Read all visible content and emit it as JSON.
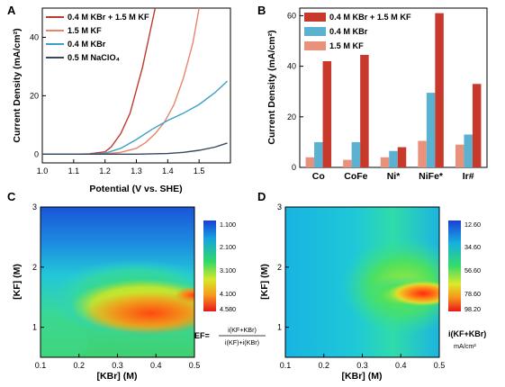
{
  "panels": {
    "A": "A",
    "B": "B",
    "C": "C",
    "D": "D"
  },
  "chart_data": [
    {
      "panel": "A",
      "type": "line",
      "xlabel": "Potential (V vs. SHE)",
      "ylabel": "Current Density (mA/cm²)",
      "xlim": [
        1.0,
        1.6
      ],
      "ylim": [
        -3,
        50
      ],
      "xticks": [
        "1.0",
        "1.1",
        "1.2",
        "1.3",
        "1.4",
        "1.5"
      ],
      "yticks": [
        "0",
        "20",
        "40"
      ],
      "legend_position": "top-left",
      "series": [
        {
          "name": "0.4 M KBr + 1.5 M KF",
          "color": "#c0392b",
          "x": [
            1.0,
            1.1,
            1.15,
            1.2,
            1.22,
            1.25,
            1.28,
            1.3,
            1.32,
            1.34,
            1.36
          ],
          "y": [
            0,
            0,
            0.1,
            0.8,
            2.5,
            7,
            14,
            22,
            30,
            40,
            50
          ]
        },
        {
          "name": "1.5 M KF",
          "color": "#e8856a",
          "x": [
            1.0,
            1.15,
            1.2,
            1.25,
            1.3,
            1.33,
            1.36,
            1.39,
            1.42,
            1.45,
            1.48,
            1.5
          ],
          "y": [
            0,
            0,
            0.1,
            0.6,
            2,
            4,
            7,
            11,
            17,
            26,
            38,
            50
          ]
        },
        {
          "name": "0.4 M KBr",
          "color": "#3aa0c4",
          "x": [
            1.0,
            1.15,
            1.2,
            1.25,
            1.3,
            1.35,
            1.4,
            1.45,
            1.5,
            1.55,
            1.59
          ],
          "y": [
            0,
            0,
            0.3,
            2,
            5,
            8.5,
            11.5,
            14,
            17,
            21,
            25
          ]
        },
        {
          "name": "0.5 M NaClO₄",
          "color": "#34495e",
          "x": [
            1.0,
            1.3,
            1.4,
            1.45,
            1.5,
            1.55,
            1.59
          ],
          "y": [
            0,
            0,
            0.2,
            0.6,
            1.3,
            2.4,
            3.8
          ]
        }
      ]
    },
    {
      "panel": "B",
      "type": "bar",
      "ylabel": "Current Density (mA/cm²)",
      "categories": [
        "Co",
        "CoFe",
        "Ni*",
        "NiFe*",
        "Ir#"
      ],
      "ylim": [
        0,
        63
      ],
      "yticks": [
        "0",
        "20",
        "40",
        "60"
      ],
      "legend_position": "top-left",
      "series": [
        {
          "name": "1.5 M KF",
          "color": "#e8927c",
          "values": [
            4,
            3,
            4,
            10.5,
            9
          ]
        },
        {
          "name": "0.4 M KBr",
          "color": "#5bb1d0",
          "values": [
            10,
            10,
            6.5,
            29.5,
            13
          ]
        },
        {
          "name": "0.4 M KBr + 1.5 M KF",
          "color": "#c9392b",
          "values": [
            42,
            44.5,
            8,
            61,
            33
          ]
        }
      ]
    },
    {
      "panel": "C",
      "type": "heatmap",
      "xlabel": "[KBr] (M)",
      "ylabel": "[KF] (M)",
      "xlim": [
        0.1,
        0.5
      ],
      "ylim": [
        0.5,
        3
      ],
      "xticks": [
        "0.1",
        "0.2",
        "0.3",
        "0.4",
        "0.5"
      ],
      "yticks": [
        "1",
        "2",
        "3"
      ],
      "colorbar_labels": [
        "1.100",
        "2.100",
        "3.100",
        "4.100",
        "4.580"
      ],
      "colorbar_title": "EF=",
      "colorbar_numerator": "i(KF+KBr)",
      "colorbar_denominator": "i(KF)+i(KBr)"
    },
    {
      "panel": "D",
      "type": "heatmap",
      "xlabel": "[KBr] (M)",
      "ylabel": "[KF] (M)",
      "xlim": [
        0.1,
        0.5
      ],
      "ylim": [
        0.5,
        3
      ],
      "xticks": [
        "0.1",
        "0.2",
        "0.3",
        "0.4",
        "0.5"
      ],
      "yticks": [
        "1",
        "2",
        "3"
      ],
      "colorbar_labels": [
        "12.60",
        "34.60",
        "56.60",
        "78.60",
        "98.20"
      ],
      "colorbar_title": "i(KF+KBr)",
      "colorbar_unit": "mA/cm²"
    }
  ]
}
